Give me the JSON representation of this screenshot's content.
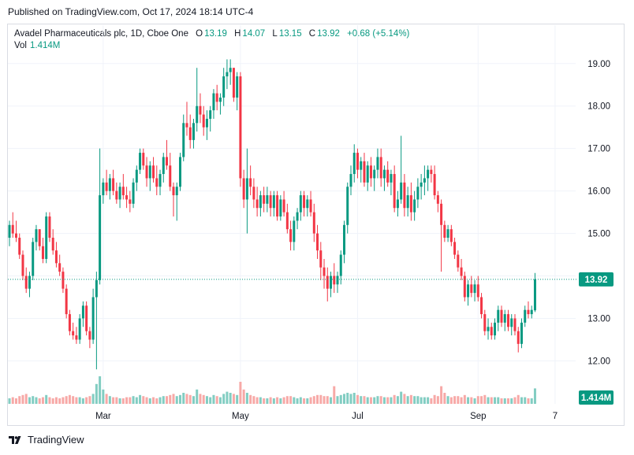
{
  "published": "Published on TradingView.com, Oct 17, 2024 18:14 UTC-4",
  "legend": {
    "name": "Avadel Pharmaceuticals plc, 1D, Cboe One",
    "o_label": "O",
    "o_val": "13.19",
    "h_label": "H",
    "h_val": "14.07",
    "l_label": "L",
    "l_val": "13.15",
    "c_label": "C",
    "c_val": "13.92",
    "change": "+0.68 (+5.14%)"
  },
  "volume": {
    "label": "Vol",
    "value": "1.414M"
  },
  "footer": {
    "brand": "TradingView",
    "logo_icon": "tradingview-logo-icon"
  },
  "colors": {
    "up": "#089981",
    "down": "#f23645",
    "up_vol": "#82cdc2",
    "down_vol": "#f7a9a7",
    "grid": "#f0f3fa",
    "axis_text": "#131722"
  },
  "chart_data": {
    "type": "candlestick",
    "symbol": "Avadel Pharmaceuticals plc",
    "interval": "1D",
    "exchange": "Cboe One",
    "ylim": [
      11.6,
      19.2
    ],
    "y_ticks": [
      "19.00",
      "18.00",
      "17.00",
      "16.00",
      "15.00",
      "14.00",
      "13.00",
      "12.00"
    ],
    "x_ticks": [
      {
        "label": "Mar",
        "index": 28
      },
      {
        "label": "May",
        "index": 69
      },
      {
        "label": "Jul",
        "index": 104
      },
      {
        "label": "Sep",
        "index": 140
      },
      {
        "label": "7",
        "index": 163
      }
    ],
    "last_price": "13.92",
    "last_volume": "1.414M",
    "grid": true,
    "candles": [
      [
        14.9,
        15.3,
        14.7,
        15.2,
        0.5
      ],
      [
        15.2,
        15.5,
        14.9,
        15.0,
        0.6
      ],
      [
        15.0,
        15.3,
        14.8,
        14.9,
        0.5
      ],
      [
        14.9,
        15.0,
        14.4,
        14.5,
        0.7
      ],
      [
        14.5,
        14.6,
        13.9,
        14.0,
        0.8
      ],
      [
        14.0,
        14.2,
        13.6,
        13.7,
        0.9
      ],
      [
        13.7,
        14.1,
        13.5,
        14.0,
        0.6
      ],
      [
        14.0,
        14.9,
        13.9,
        14.8,
        0.7
      ],
      [
        14.8,
        15.2,
        14.6,
        15.1,
        0.6
      ],
      [
        15.1,
        15.1,
        14.6,
        14.7,
        0.5
      ],
      [
        14.7,
        14.9,
        14.3,
        14.4,
        0.6
      ],
      [
        14.4,
        15.5,
        14.3,
        15.4,
        0.8
      ],
      [
        15.4,
        15.5,
        14.8,
        14.9,
        0.6
      ],
      [
        14.9,
        15.1,
        14.5,
        14.6,
        0.5
      ],
      [
        14.6,
        14.8,
        14.2,
        14.3,
        0.6
      ],
      [
        14.3,
        14.5,
        14.0,
        14.1,
        0.5
      ],
      [
        14.1,
        14.2,
        13.6,
        13.7,
        0.6
      ],
      [
        13.7,
        13.8,
        13.0,
        13.1,
        0.7
      ],
      [
        13.1,
        13.2,
        12.6,
        12.7,
        0.8
      ],
      [
        12.7,
        12.9,
        12.5,
        12.6,
        0.7
      ],
      [
        12.6,
        12.8,
        12.4,
        12.5,
        0.6
      ],
      [
        12.5,
        13.1,
        12.4,
        13.0,
        0.6
      ],
      [
        13.0,
        13.4,
        12.8,
        13.3,
        0.5
      ],
      [
        13.3,
        13.4,
        12.6,
        12.7,
        0.6
      ],
      [
        12.7,
        12.8,
        12.3,
        12.5,
        0.7
      ],
      [
        12.5,
        13.7,
        12.4,
        13.5,
        0.9
      ],
      [
        13.5,
        14.1,
        11.8,
        13.9,
        1.8
      ],
      [
        13.9,
        17.0,
        13.8,
        15.9,
        2.5
      ],
      [
        15.9,
        16.3,
        15.7,
        16.2,
        1.3
      ],
      [
        16.2,
        16.5,
        15.9,
        16.0,
        0.9
      ],
      [
        16.0,
        16.4,
        15.8,
        16.3,
        0.7
      ],
      [
        16.3,
        16.5,
        15.9,
        16.0,
        0.6
      ],
      [
        16.0,
        16.2,
        15.7,
        15.8,
        0.6
      ],
      [
        15.8,
        16.2,
        15.6,
        16.1,
        0.5
      ],
      [
        16.1,
        16.4,
        15.8,
        15.9,
        0.5
      ],
      [
        15.9,
        16.1,
        15.6,
        15.8,
        0.6
      ],
      [
        15.8,
        16.0,
        15.5,
        15.7,
        0.6
      ],
      [
        15.7,
        16.3,
        15.6,
        16.2,
        0.7
      ],
      [
        16.2,
        16.6,
        16.0,
        16.5,
        0.6
      ],
      [
        16.5,
        17.0,
        16.4,
        16.9,
        0.8
      ],
      [
        16.9,
        17.0,
        16.5,
        16.6,
        0.7
      ],
      [
        16.6,
        16.8,
        16.1,
        16.3,
        0.6
      ],
      [
        16.3,
        16.7,
        16.0,
        16.6,
        0.5
      ],
      [
        16.6,
        16.8,
        16.2,
        16.3,
        0.6
      ],
      [
        16.3,
        16.6,
        15.9,
        16.1,
        0.5
      ],
      [
        16.1,
        16.5,
        15.9,
        16.4,
        0.6
      ],
      [
        16.4,
        16.9,
        16.2,
        16.8,
        0.7
      ],
      [
        16.8,
        17.2,
        16.5,
        16.6,
        0.7
      ],
      [
        16.6,
        16.9,
        16.0,
        16.1,
        0.8
      ],
      [
        16.1,
        16.2,
        15.4,
        15.9,
        0.9
      ],
      [
        15.9,
        16.2,
        15.3,
        16.1,
        0.7
      ],
      [
        16.1,
        16.9,
        16.0,
        16.8,
        0.8
      ],
      [
        16.8,
        17.8,
        16.7,
        17.6,
        1.0
      ],
      [
        17.6,
        18.1,
        17.3,
        17.5,
        0.9
      ],
      [
        17.5,
        17.8,
        17.0,
        17.2,
        0.8
      ],
      [
        17.2,
        17.7,
        17.0,
        17.6,
        0.7
      ],
      [
        17.6,
        18.9,
        17.4,
        18.0,
        1.3
      ],
      [
        18.0,
        18.3,
        17.6,
        17.8,
        0.9
      ],
      [
        17.8,
        18.0,
        17.3,
        17.5,
        0.8
      ],
      [
        17.5,
        17.9,
        17.2,
        17.7,
        0.7
      ],
      [
        17.7,
        18.0,
        17.4,
        17.9,
        0.6
      ],
      [
        17.9,
        18.4,
        17.7,
        18.3,
        0.8
      ],
      [
        18.3,
        18.5,
        17.9,
        18.1,
        0.7
      ],
      [
        18.1,
        18.3,
        17.8,
        18.2,
        0.6
      ],
      [
        18.2,
        18.9,
        18.0,
        18.7,
        0.9
      ],
      [
        18.7,
        19.1,
        18.4,
        18.8,
        1.1
      ],
      [
        18.8,
        19.1,
        18.5,
        18.9,
        1.0
      ],
      [
        18.9,
        18.9,
        18.1,
        18.2,
        0.9
      ],
      [
        18.2,
        18.8,
        17.9,
        18.7,
        0.8
      ],
      [
        18.7,
        18.8,
        16.1,
        16.3,
        2.0
      ],
      [
        16.3,
        16.5,
        15.6,
        15.8,
        1.3
      ],
      [
        15.8,
        17.0,
        15.0,
        16.3,
        1.0
      ],
      [
        16.3,
        16.6,
        15.9,
        16.1,
        0.8
      ],
      [
        16.1,
        16.3,
        15.6,
        15.8,
        0.7
      ],
      [
        15.8,
        16.1,
        15.4,
        15.6,
        0.6
      ],
      [
        15.6,
        16.0,
        15.4,
        15.9,
        0.6
      ],
      [
        15.9,
        16.1,
        15.5,
        15.7,
        0.5
      ],
      [
        15.7,
        16.1,
        15.5,
        15.9,
        0.5
      ],
      [
        15.9,
        16.0,
        15.4,
        15.6,
        0.6
      ],
      [
        15.6,
        16.0,
        15.4,
        15.9,
        0.5
      ],
      [
        15.9,
        16.0,
        15.3,
        15.4,
        0.6
      ],
      [
        15.4,
        15.9,
        15.3,
        15.8,
        0.5
      ],
      [
        15.8,
        16.0,
        15.4,
        15.5,
        0.6
      ],
      [
        15.5,
        15.7,
        15.0,
        15.1,
        0.7
      ],
      [
        15.1,
        15.3,
        14.6,
        14.8,
        0.7
      ],
      [
        14.8,
        15.4,
        14.6,
        15.3,
        0.6
      ],
      [
        15.3,
        15.6,
        15.1,
        15.5,
        0.5
      ],
      [
        15.5,
        16.0,
        15.3,
        15.9,
        0.6
      ],
      [
        15.9,
        16.0,
        15.4,
        15.6,
        0.5
      ],
      [
        15.6,
        15.9,
        15.4,
        15.8,
        0.5
      ],
      [
        15.8,
        16.0,
        15.4,
        15.5,
        0.6
      ],
      [
        15.5,
        15.7,
        14.8,
        15.0,
        0.7
      ],
      [
        15.0,
        15.2,
        14.4,
        14.6,
        0.8
      ],
      [
        14.6,
        14.8,
        13.9,
        14.2,
        0.8
      ],
      [
        14.2,
        14.4,
        13.7,
        14.0,
        0.7
      ],
      [
        14.0,
        14.2,
        13.4,
        13.7,
        0.7
      ],
      [
        13.7,
        14.1,
        13.5,
        14.0,
        0.6
      ],
      [
        14.0,
        14.3,
        13.6,
        13.8,
        1.6
      ],
      [
        13.8,
        14.1,
        13.6,
        14.0,
        0.7
      ],
      [
        14.0,
        14.6,
        13.8,
        14.5,
        0.8
      ],
      [
        14.5,
        15.3,
        14.3,
        15.2,
        0.9
      ],
      [
        15.2,
        16.2,
        15.0,
        16.1,
        1.0
      ],
      [
        16.1,
        16.6,
        15.9,
        16.4,
        0.9
      ],
      [
        16.4,
        17.1,
        16.2,
        16.9,
        1.0
      ],
      [
        16.9,
        17.0,
        16.3,
        16.5,
        0.8
      ],
      [
        16.5,
        16.8,
        16.2,
        16.7,
        0.7
      ],
      [
        16.7,
        16.9,
        16.1,
        16.2,
        0.7
      ],
      [
        16.2,
        16.7,
        16.0,
        16.6,
        0.6
      ],
      [
        16.6,
        16.8,
        16.1,
        16.3,
        0.6
      ],
      [
        16.3,
        16.6,
        16.0,
        16.5,
        0.6
      ],
      [
        16.5,
        17.0,
        16.3,
        16.8,
        0.7
      ],
      [
        16.8,
        17.0,
        16.1,
        16.3,
        0.7
      ],
      [
        16.3,
        16.6,
        16.0,
        16.5,
        0.6
      ],
      [
        16.5,
        16.7,
        16.1,
        16.2,
        0.6
      ],
      [
        16.2,
        16.5,
        15.9,
        16.4,
        0.6
      ],
      [
        16.4,
        16.6,
        15.5,
        15.6,
        0.8
      ],
      [
        15.6,
        16.0,
        15.4,
        15.8,
        0.7
      ],
      [
        15.8,
        17.3,
        15.7,
        16.2,
        1.1
      ],
      [
        16.2,
        16.4,
        15.4,
        15.6,
        0.9
      ],
      [
        15.6,
        16.1,
        15.4,
        15.9,
        0.7
      ],
      [
        15.9,
        16.2,
        15.3,
        15.5,
        0.8
      ],
      [
        15.5,
        16.0,
        15.3,
        15.8,
        0.7
      ],
      [
        15.8,
        16.3,
        15.6,
        16.1,
        0.7
      ],
      [
        16.1,
        16.4,
        15.8,
        16.2,
        0.6
      ],
      [
        16.2,
        16.6,
        15.9,
        16.3,
        0.6
      ],
      [
        16.3,
        16.6,
        16.0,
        16.5,
        0.6
      ],
      [
        16.5,
        16.6,
        16.2,
        16.4,
        0.5
      ],
      [
        16.4,
        16.6,
        15.8,
        15.9,
        0.8
      ],
      [
        15.9,
        16.0,
        15.5,
        15.7,
        0.7
      ],
      [
        15.7,
        15.8,
        14.1,
        15.2,
        1.6
      ],
      [
        15.2,
        15.3,
        14.8,
        14.9,
        1.0
      ],
      [
        14.9,
        15.2,
        14.8,
        15.1,
        0.7
      ],
      [
        15.1,
        15.2,
        14.7,
        14.8,
        0.6
      ],
      [
        14.8,
        14.9,
        14.4,
        14.5,
        0.7
      ],
      [
        14.5,
        14.6,
        14.1,
        14.2,
        0.7
      ],
      [
        14.2,
        14.4,
        13.9,
        14.0,
        0.6
      ],
      [
        14.0,
        14.1,
        13.4,
        13.5,
        0.8
      ],
      [
        13.5,
        13.9,
        13.3,
        13.8,
        0.6
      ],
      [
        13.8,
        14.0,
        13.5,
        13.6,
        0.6
      ],
      [
        13.6,
        13.9,
        13.4,
        13.8,
        0.5
      ],
      [
        13.8,
        14.0,
        13.4,
        13.5,
        0.7
      ],
      [
        13.5,
        13.6,
        13.0,
        13.1,
        0.7
      ],
      [
        13.1,
        13.2,
        12.6,
        12.7,
        0.8
      ],
      [
        12.7,
        13.0,
        12.5,
        12.8,
        0.6
      ],
      [
        12.8,
        12.9,
        12.5,
        12.6,
        0.6
      ],
      [
        12.6,
        13.0,
        12.5,
        12.9,
        0.6
      ],
      [
        12.9,
        13.3,
        12.7,
        13.2,
        0.6
      ],
      [
        13.2,
        13.3,
        12.8,
        12.9,
        0.5
      ],
      [
        12.9,
        13.2,
        12.7,
        13.1,
        0.5
      ],
      [
        13.1,
        13.2,
        12.7,
        12.8,
        0.5
      ],
      [
        12.8,
        13.1,
        12.6,
        13.0,
        0.5
      ],
      [
        13.0,
        13.1,
        12.6,
        12.7,
        0.6
      ],
      [
        12.7,
        12.8,
        12.2,
        12.4,
        0.8
      ],
      [
        12.4,
        13.0,
        12.3,
        12.9,
        0.6
      ],
      [
        12.9,
        13.3,
        12.8,
        13.2,
        0.6
      ],
      [
        13.2,
        13.4,
        13.0,
        13.1,
        0.5
      ],
      [
        13.1,
        13.3,
        13.0,
        13.2,
        0.5
      ],
      [
        13.19,
        14.07,
        13.15,
        13.92,
        1.4
      ]
    ]
  }
}
